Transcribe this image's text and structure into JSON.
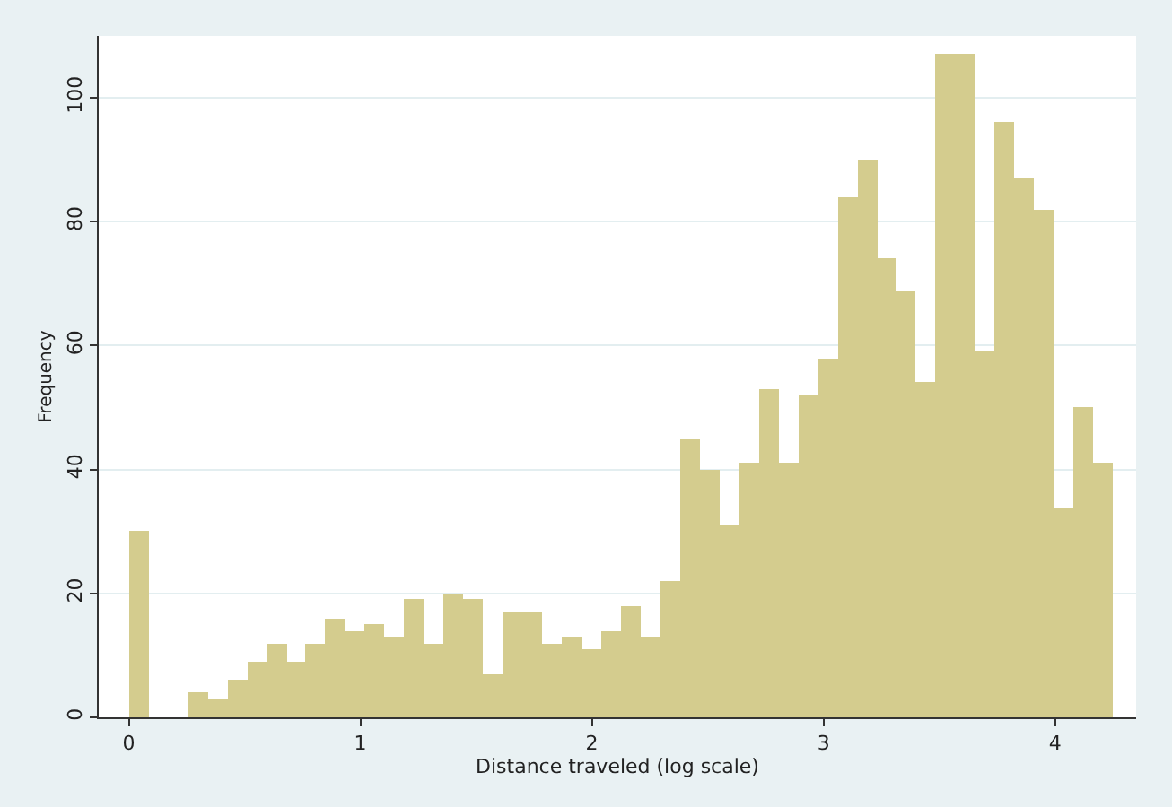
{
  "chart_data": {
    "type": "histogram",
    "xlabel": "Distance traveled (log scale)",
    "ylabel": "Frequency",
    "bins": [
      0,
      0.085,
      0.17,
      0.255,
      0.34,
      0.425,
      0.51,
      0.595,
      0.68,
      0.765,
      0.85,
      0.935,
      1.02,
      1.105,
      1.19,
      1.275,
      1.36,
      1.445,
      1.53,
      1.615,
      1.7,
      1.785,
      1.87,
      1.955,
      2.04,
      2.125,
      2.21,
      2.295,
      2.38,
      2.465,
      2.55,
      2.635,
      2.72,
      2.805,
      2.89,
      2.975,
      3.06,
      3.145,
      3.23,
      3.315,
      3.4,
      3.485,
      3.57,
      3.655,
      3.74,
      3.825,
      3.91,
      3.995,
      4.08,
      4.165,
      4.25
    ],
    "values": [
      30,
      0,
      0,
      4,
      3,
      6,
      9,
      12,
      9,
      12,
      16,
      14,
      15,
      13,
      19,
      12,
      20,
      19,
      7,
      17,
      17,
      12,
      13,
      11,
      14,
      18,
      13,
      22,
      45,
      40,
      31,
      41,
      53,
      41,
      52,
      58,
      84,
      90,
      74,
      69,
      54,
      107,
      107,
      59,
      96,
      87,
      82,
      34,
      50,
      41
    ],
    "color": "#d4cc8e",
    "xlim": [
      -0.13,
      4.35
    ],
    "xticks": [
      0,
      1,
      2,
      3,
      4
    ],
    "ylim": [
      0,
      110
    ],
    "yticks": [
      0,
      20,
      40,
      60,
      80,
      100
    ],
    "grid": "y"
  }
}
